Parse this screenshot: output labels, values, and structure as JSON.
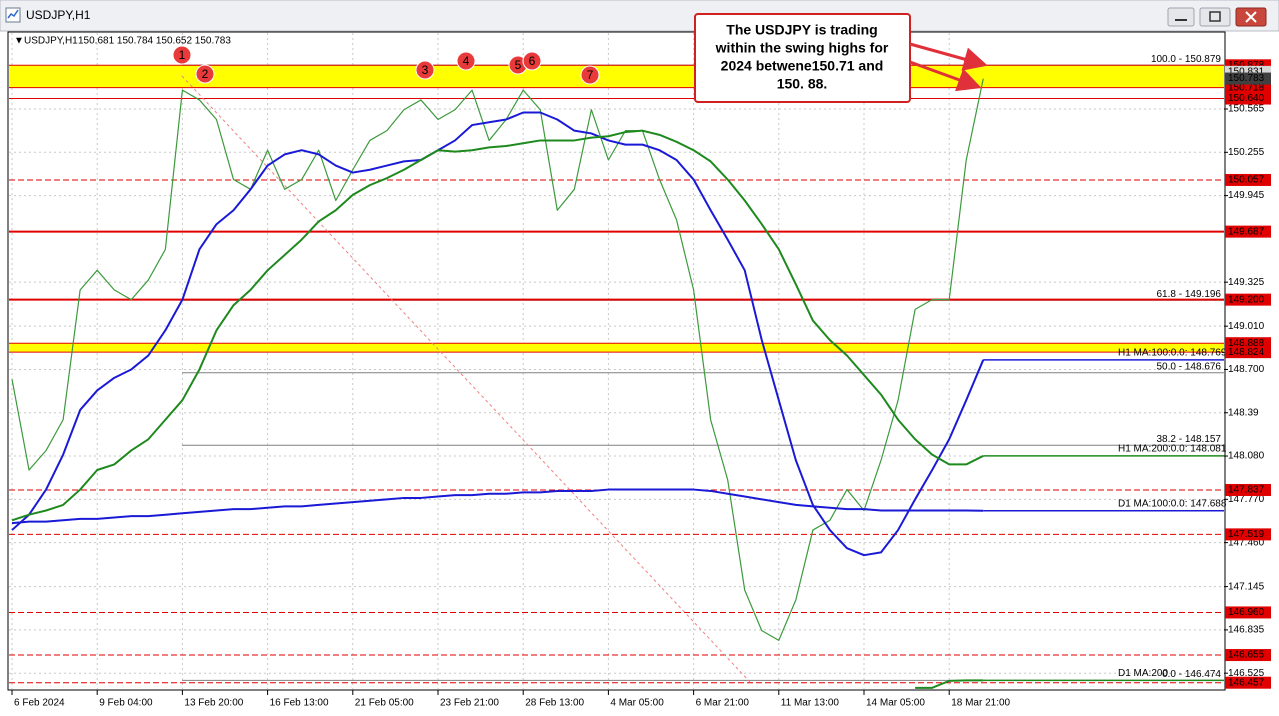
{
  "chart_data": {
    "type": "line",
    "title": "USDJPY,H1",
    "ohlc": "150.681 150.784 150.652 150.783",
    "categories": [
      "6 Feb 2024",
      null,
      null,
      null,
      null,
      "9 Feb 04:00",
      null,
      null,
      null,
      null,
      "13 Feb 20:00",
      null,
      null,
      null,
      null,
      "16 Feb 13:00",
      null,
      null,
      null,
      null,
      "21 Feb 05:00",
      null,
      null,
      null,
      null,
      "23 Feb 21:00",
      null,
      null,
      null,
      null,
      "28 Feb 13:00",
      null,
      null,
      null,
      null,
      "4 Mar 05:00",
      null,
      null,
      null,
      null,
      "6 Mar 21:00",
      null,
      null,
      null,
      null,
      "11 Mar 13:00",
      null,
      null,
      null,
      null,
      "14 Mar 05:00",
      null,
      null,
      null,
      null,
      "18 Mar 21:00",
      null,
      null
    ],
    "series": [
      {
        "name": "USDJPY,H1",
        "color": "#3c9a3c",
        "values": [
          148.63,
          147.98,
          148.12,
          148.34,
          149.27,
          149.41,
          149.27,
          149.2,
          149.34,
          149.56,
          150.7,
          150.63,
          150.49,
          150.06,
          149.99,
          150.27,
          149.99,
          150.06,
          150.27,
          149.91,
          150.13,
          150.34,
          150.41,
          150.56,
          150.63,
          150.49,
          150.56,
          150.7,
          150.34,
          150.49,
          150.7,
          150.56,
          149.84,
          149.99,
          150.56,
          150.2,
          150.41,
          150.41,
          150.06,
          149.77,
          149.27,
          148.34,
          147.91,
          147.12,
          146.83,
          146.76,
          147.05,
          147.55,
          147.62,
          147.84,
          147.69,
          148.05,
          148.48,
          149.13,
          149.2,
          149.2,
          150.2,
          150.783
        ]
      },
      {
        "name": "H1 MA:100:0.0: 148.769",
        "color": "#1a1ad6",
        "values": [
          147.55,
          147.66,
          147.84,
          148.09,
          148.41,
          148.55,
          148.64,
          148.7,
          148.8,
          148.98,
          149.2,
          149.56,
          149.74,
          149.84,
          149.99,
          150.16,
          150.24,
          150.27,
          150.24,
          150.16,
          150.11,
          150.13,
          150.16,
          150.19,
          150.2,
          150.27,
          150.34,
          150.45,
          150.47,
          150.49,
          150.54,
          150.54,
          150.49,
          150.41,
          150.39,
          150.34,
          150.31,
          150.31,
          150.27,
          150.2,
          150.06,
          149.84,
          149.63,
          149.41,
          148.91,
          148.48,
          148.05,
          147.73,
          147.55,
          147.42,
          147.37,
          147.39,
          147.55,
          147.77,
          147.98,
          148.2,
          148.48,
          148.769
        ]
      },
      {
        "name": "H1 MA:200:0.0: 148.081",
        "color": "#1e8a1e",
        "values": [
          147.62,
          147.66,
          147.69,
          147.73,
          147.84,
          147.98,
          148.02,
          148.12,
          148.2,
          148.34,
          148.48,
          148.7,
          148.98,
          149.16,
          149.27,
          149.41,
          149.52,
          149.63,
          149.76,
          149.84,
          149.95,
          150.02,
          150.07,
          150.13,
          150.2,
          150.27,
          150.26,
          150.27,
          150.29,
          150.3,
          150.32,
          150.34,
          150.34,
          150.34,
          150.36,
          150.37,
          150.4,
          150.41,
          150.38,
          150.33,
          150.27,
          150.19,
          150.06,
          149.91,
          149.74,
          149.56,
          149.31,
          149.05,
          148.91,
          148.8,
          148.66,
          148.52,
          148.34,
          148.2,
          148.09,
          148.02,
          148.02,
          148.081
        ]
      },
      {
        "name": "D1 MA:100:0.0: 147.688",
        "color": "#1a1ad6",
        "values": [
          147.6,
          147.61,
          147.61,
          147.62,
          147.63,
          147.63,
          147.64,
          147.65,
          147.65,
          147.66,
          147.67,
          147.68,
          147.69,
          147.7,
          147.7,
          147.71,
          147.72,
          147.72,
          147.73,
          147.74,
          147.75,
          147.76,
          147.77,
          147.78,
          147.78,
          147.79,
          147.8,
          147.8,
          147.81,
          147.81,
          147.82,
          147.82,
          147.83,
          147.83,
          147.83,
          147.84,
          147.84,
          147.84,
          147.84,
          147.84,
          147.84,
          147.83,
          147.81,
          147.79,
          147.77,
          147.75,
          147.73,
          147.72,
          147.71,
          147.7,
          147.7,
          147.69,
          147.69,
          147.69,
          147.69,
          147.69,
          147.69,
          147.688
        ]
      },
      {
        "name": "D1 MA:200",
        "color": "#1e8a1e",
        "values": [
          null,
          null,
          null,
          null,
          null,
          null,
          null,
          null,
          null,
          null,
          null,
          null,
          null,
          null,
          null,
          null,
          null,
          null,
          null,
          null,
          null,
          null,
          null,
          null,
          null,
          null,
          null,
          null,
          null,
          null,
          null,
          null,
          null,
          null,
          null,
          null,
          null,
          null,
          null,
          null,
          null,
          null,
          null,
          null,
          null,
          null,
          null,
          null,
          null,
          null,
          null,
          null,
          null,
          146.42,
          146.42,
          146.47,
          146.474,
          146.474
        ]
      }
    ],
    "ylim": [
      146.419,
      151.095
    ],
    "yticks": [
      150.565,
      150.255,
      149.945,
      149.325,
      {
        "value": 149.01,
        "label": "149.010"
      },
      {
        "value": 148.7,
        "label": "148.700"
      },
      148.39,
      {
        "value": 148.08,
        "label": "148.080"
      },
      {
        "value": 147.77,
        "label": "147.770"
      },
      {
        "value": 147.46,
        "label": "147.460"
      },
      147.145,
      146.835,
      146.525
    ],
    "grid": true,
    "levels": [
      {
        "value": 150.878,
        "label": "150.878",
        "style": "thin"
      },
      {
        "value": 150.718,
        "label": "150.718",
        "style": "thin"
      },
      {
        "value": 150.64,
        "label": "150.640",
        "style": "thin"
      },
      {
        "value": 150.057,
        "label": "150.057",
        "style": "dashed"
      },
      {
        "value": 149.687,
        "label": "149.687",
        "style": "thick"
      },
      {
        "value": 149.2,
        "label": "149.200",
        "style": "thick"
      },
      {
        "value": 148.888,
        "label": "148.888",
        "style": "thin"
      },
      {
        "value": 148.824,
        "label": "148.824",
        "style": "thin"
      },
      {
        "value": 147.837,
        "label": "147.837",
        "style": "dashed"
      },
      {
        "value": 147.519,
        "label": "147.519",
        "style": "dashed"
      },
      {
        "value": 146.96,
        "label": "146.960",
        "style": "dashed"
      },
      {
        "value": 146.655,
        "label": "146.655",
        "style": "dashed"
      },
      {
        "value": 146.457,
        "label": "146.457",
        "style": "dashed"
      }
    ],
    "level_color": "#e00000",
    "bands": [
      [
        150.718,
        150.878
      ],
      [
        148.824,
        148.888
      ]
    ],
    "band_color": "#ffff00",
    "fib": [
      {
        "value": 150.879,
        "label": "100.0 - 150.879"
      },
      {
        "value": 149.196,
        "label": "61.8 - 149.196"
      },
      {
        "value": 148.676,
        "label": "50.0 - 148.676"
      },
      {
        "value": 148.157,
        "label": "38.2 - 148.157"
      },
      {
        "value": 146.474,
        "label": "0.0 - 146.474"
      }
    ],
    "ask": 150.831,
    "markers": [
      "1",
      "2",
      "3",
      "4",
      "5",
      "6",
      "7"
    ],
    "callout": [
      "The USDJPY is trading",
      "within the swing highs for",
      "2024 betwene150.71 and",
      "150. 88."
    ]
  }
}
